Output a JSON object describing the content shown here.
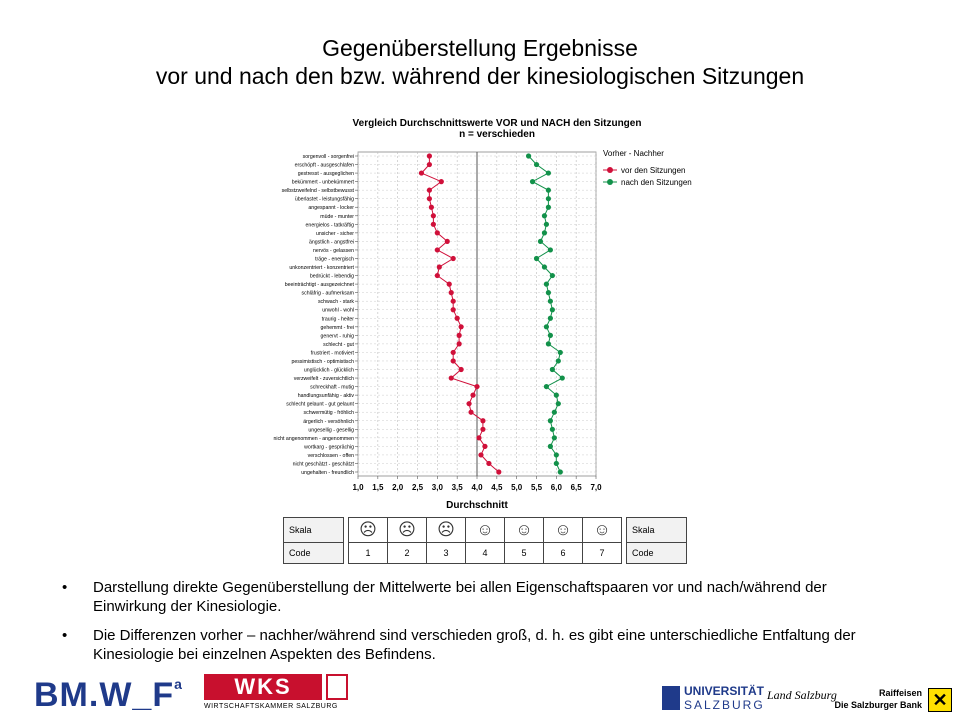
{
  "slide": {
    "title_line1": "Gegenüberstellung Ergebnisse",
    "title_line2": "vor und nach den bzw. während der kinesiologischen Sitzungen"
  },
  "chart_data": {
    "type": "line",
    "orientation": "horizontal",
    "title": "Vergleich Durchschnittswerte VOR und NACH den Sitzungen",
    "subtitle": "n = verschieden",
    "xlabel": "Durchschnitt",
    "xlim": [
      1.0,
      7.0
    ],
    "xticks": [
      "1,0",
      "1,5",
      "2,0",
      "2,5",
      "3,0",
      "3,5",
      "4,0",
      "4,5",
      "5,0",
      "5,5",
      "6,0",
      "6,5",
      "7,0"
    ],
    "reference_line": 4.0,
    "grid": true,
    "legend_title": "Vorher - Nachher",
    "legend_position": "top-right",
    "categories": [
      "sorgenvoll - sorgenfrei",
      "erschöpft - ausgeschlafen",
      "gestresst - ausgeglichen",
      "bekümmert - unbekümmert",
      "selbstzweifelnd - selbstbewusst",
      "überlastet - leistungsfähig",
      "angespannt - locker",
      "müde - munter",
      "energielos - tatkräftig",
      "unsicher - sicher",
      "ängstlich - angstfrei",
      "nervös - gelassen",
      "träge - energisch",
      "unkonzentriert - konzentriert",
      "bedrückt - lebendig",
      "beeinträchtigt - ausgezeichnet",
      "schläfrig - aufmerksam",
      "schwach - stark",
      "unwohl - wohl",
      "traurig - heiter",
      "gehemmt - frei",
      "genervt - ruhig",
      "schlecht - gut",
      "frustriert - motiviert",
      "pessimistisch - optimistisch",
      "unglücklich - glücklich",
      "verzweifelt - zuversichtlich",
      "schreckhaft - mutig",
      "handlungsunfähig - aktiv",
      "schlecht gelaunt - gut gelaunt",
      "schwermütig - fröhlich",
      "ärgerlich - versöhnlich",
      "ungesellig - gesellig",
      "nicht angenommen - angenommen",
      "wortkarg - gesprächig",
      "verschlossen - offen",
      "nicht geschätzt - geschätzt",
      "ungehalten - freundlich"
    ],
    "series": [
      {
        "name": "vor den Sitzungen",
        "color": "#d0103a",
        "values": [
          2.8,
          2.8,
          2.6,
          3.1,
          2.8,
          2.8,
          2.85,
          2.9,
          2.9,
          3.0,
          3.25,
          3.0,
          3.4,
          3.05,
          3.0,
          3.3,
          3.35,
          3.4,
          3.4,
          3.5,
          3.6,
          3.55,
          3.55,
          3.4,
          3.4,
          3.6,
          3.35,
          4.0,
          3.9,
          3.8,
          3.85,
          4.15,
          4.15,
          4.05,
          4.2,
          4.1,
          4.3,
          4.55
        ]
      },
      {
        "name": "nach den Sitzungen",
        "color": "#12914a",
        "values": [
          5.3,
          5.5,
          5.8,
          5.4,
          5.8,
          5.8,
          5.8,
          5.7,
          5.75,
          5.7,
          5.6,
          5.85,
          5.5,
          5.7,
          5.9,
          5.75,
          5.8,
          5.85,
          5.9,
          5.85,
          5.75,
          5.85,
          5.8,
          6.1,
          6.05,
          5.9,
          6.15,
          5.75,
          6.0,
          6.05,
          5.95,
          5.85,
          5.9,
          5.95,
          5.85,
          6.0,
          6.0,
          6.1
        ]
      }
    ]
  },
  "scale": {
    "row1_label": "Skala",
    "row2_label": "Code",
    "faces": [
      "☹",
      "☹",
      "☹",
      "☺",
      "☺",
      "☺",
      "☺"
    ],
    "codes": [
      "1",
      "2",
      "3",
      "4",
      "5",
      "6",
      "7"
    ]
  },
  "bullets": [
    "Darstellung direkte Gegenüberstellung der Mittelwerte bei allen Eigenschaftspaaren vor und nach/während der Einwirkung der Kinesiologie.",
    "Die Differenzen vorher – nachher/während sind verschieden groß, d. h. es gibt eine unterschiedliche Entfaltung der Kinesiologie bei einzelnen Aspekten des Befindens."
  ],
  "bullet_symbol": "•",
  "footer": {
    "bmwf": "BM.W_F",
    "bmwf_sup": "a",
    "wks": "WKS",
    "wks_sub": "WIRTSCHAFTSKAMMER SALZBURG",
    "uni_line1": "UNIVERSITÄT",
    "uni_line2": "SALZBURG",
    "land": "Land Salzburg",
    "rb_line1": "Raiffeisen",
    "rb_line2": "Die Salzburger Bank"
  }
}
